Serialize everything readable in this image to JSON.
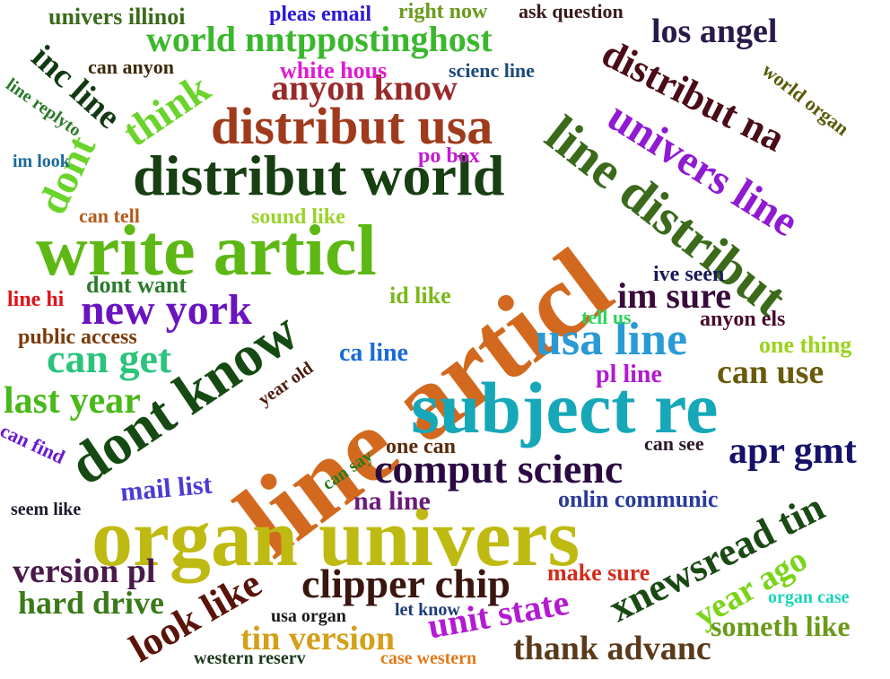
{
  "words": [
    {
      "text": "line articl",
      "color": "#d2691e"
    },
    {
      "text": "organ univers",
      "color": "#bfba12"
    },
    {
      "text": "subject re",
      "color": "#16a8b8"
    },
    {
      "text": "write articl",
      "color": "#5db814"
    },
    {
      "text": "dont know",
      "color": "#154a12"
    },
    {
      "text": "distribut world",
      "color": "#173f12"
    },
    {
      "text": "line distribut",
      "color": "#3a6a1a"
    },
    {
      "text": "distribut usa",
      "color": "#a03a1c"
    },
    {
      "text": "univers line",
      "color": "#8f1ad2"
    },
    {
      "text": "distribut na",
      "color": "#4a0c16"
    },
    {
      "text": "usa line",
      "color": "#2a9ad6"
    },
    {
      "text": "comput scienc",
      "color": "#2b0a44"
    },
    {
      "text": "world nntppostinghost",
      "color": "#3ab82c"
    },
    {
      "text": "new york",
      "color": "#6a14c0"
    },
    {
      "text": "xnewsread tin",
      "color": "#1a4a14"
    },
    {
      "text": "clipper chip",
      "color": "#3a1610"
    },
    {
      "text": "can get",
      "color": "#2ac47c"
    },
    {
      "text": "anyon know",
      "color": "#9a2a2a"
    },
    {
      "text": "think",
      "color": "#6ad42a"
    },
    {
      "text": "look like",
      "color": "#5a140a"
    },
    {
      "text": "unit state",
      "color": "#b41ad2"
    },
    {
      "text": "last year",
      "color": "#4ab81a"
    },
    {
      "text": "apr gmt",
      "color": "#16126a"
    },
    {
      "text": "im sure",
      "color": "#3a0a3a"
    },
    {
      "text": "dont",
      "color": "#6ad42a"
    },
    {
      "text": "inc line",
      "color": "#123a12"
    },
    {
      "text": "version pl",
      "color": "#4a1a4a"
    },
    {
      "text": "tin version",
      "color": "#d4a01a"
    },
    {
      "text": "thank advanc",
      "color": "#5a3a1a"
    },
    {
      "text": "can use",
      "color": "#6a5a0a"
    },
    {
      "text": "los angel",
      "color": "#2a1a4a"
    },
    {
      "text": "hard drive",
      "color": "#3a7a1a"
    },
    {
      "text": "year ago",
      "color": "#7ad41a"
    },
    {
      "text": "someth like",
      "color": "#6a9a1a"
    },
    {
      "text": "mail list",
      "color": "#4a3ad6"
    },
    {
      "text": "na line",
      "color": "#6a1a7a"
    },
    {
      "text": "onlin communic",
      "color": "#2a3a9a"
    },
    {
      "text": "one thing",
      "color": "#9ad41a"
    },
    {
      "text": "make sure",
      "color": "#d42a1a"
    },
    {
      "text": "pl line",
      "color": "#b01ad2"
    },
    {
      "text": "ca line",
      "color": "#1a6ad6"
    },
    {
      "text": "dont want",
      "color": "#2a7a2a"
    },
    {
      "text": "public access",
      "color": "#7a3a0a"
    },
    {
      "text": "univers illinoi",
      "color": "#3a6a1a"
    },
    {
      "text": "pleas email",
      "color": "#2a1ad6"
    },
    {
      "text": "right now",
      "color": "#6a9a1a"
    },
    {
      "text": "ask question",
      "color": "#3a1a1a"
    },
    {
      "text": "white hous",
      "color": "#e01ad2"
    },
    {
      "text": "scienc line",
      "color": "#1a4a7a"
    },
    {
      "text": "po box",
      "color": "#c41ad2"
    },
    {
      "text": "sound like",
      "color": "#9ad42a"
    },
    {
      "text": "can tell",
      "color": "#b45a1a"
    },
    {
      "text": "id like",
      "color": "#7ab81a"
    },
    {
      "text": "ive seen",
      "color": "#1a1a5a"
    },
    {
      "text": "anyon els",
      "color": "#4a0a2a"
    },
    {
      "text": "tell us",
      "color": "#2ad45a"
    },
    {
      "text": "one can",
      "color": "#5a2a0a"
    },
    {
      "text": "can see",
      "color": "#2a1a2a"
    },
    {
      "text": "can anyon",
      "color": "#3a2a0a"
    },
    {
      "text": "line replyto",
      "color": "#2a7a2a"
    },
    {
      "text": "im look",
      "color": "#1a6a9a"
    },
    {
      "text": "world organ",
      "color": "#5a5a0a"
    },
    {
      "text": "line hi",
      "color": "#e0141a"
    },
    {
      "text": "can find",
      "color": "#6a1ad2"
    },
    {
      "text": "seem like",
      "color": "#1a1a2a"
    },
    {
      "text": "year old",
      "color": "#4a1a0a"
    },
    {
      "text": "can say",
      "color": "#2a7a1a"
    },
    {
      "text": "usa organ",
      "color": "#1a1a1a"
    },
    {
      "text": "let know",
      "color": "#1a3a7a"
    },
    {
      "text": "western reserv",
      "color": "#1a3a1a"
    },
    {
      "text": "case western",
      "color": "#e07a1a"
    },
    {
      "text": "organ case",
      "color": "#1ad4b8"
    }
  ]
}
